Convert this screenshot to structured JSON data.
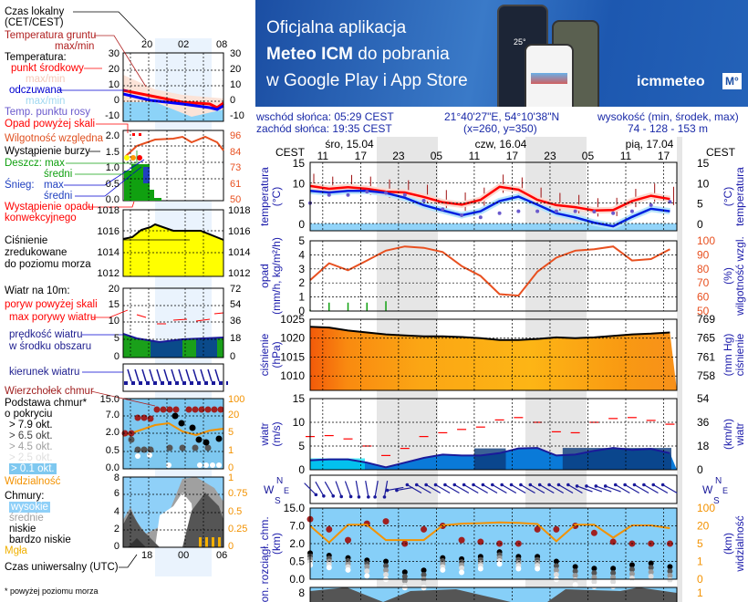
{
  "banner": {
    "line1": "Oficjalna aplikacja",
    "line2_bold": "Meteo ICM",
    "line2_rest": " do pobrania",
    "line3": "w Google Play i App Store",
    "brand": "icmmeteo",
    "brand_badge": "M°",
    "phone_temp": "25°"
  },
  "info": {
    "sunrise": "wschód słońca: 05:29 CEST",
    "sunset": "zachód słońca: 19:35 CEST",
    "coords": "21°40'27\"E, 54°10'38\"N",
    "grid": "(x=260,  y=350)",
    "elev_label": "wysokość (min, środek, max)",
    "elev_value": "74 - 128 - 153 m"
  },
  "time_header": {
    "tz_left": "CEST",
    "tz_right": "CEST",
    "days": [
      "śro, 15.04",
      "czw, 16.04",
      "pią, 17.04"
    ],
    "hours": [
      "11",
      "17",
      "23",
      "05",
      "11",
      "17",
      "23",
      "05",
      "11",
      "17"
    ]
  },
  "legend": {
    "local_time": "Czas lokalny",
    "local_time2": "(CET/CEST)",
    "ground_temp": "Temperatura gruntu",
    "ground_temp_mm": "max/min",
    "temperature": "Temperatura:",
    "mid_point": "punkt środkowy",
    "mid_mm": "max/min",
    "felt": "odczuwana",
    "felt_mm": "max/min",
    "dew_point": "Temp. punktu rosy",
    "precip_above": "Opad powyżej skali",
    "humidity": "Wilgotność względna",
    "storm": "Wystąpienie burzy",
    "rain_max": "Deszcz: max",
    "rain_avg": "średni",
    "snow": "Śnieg:",
    "snow_max": "max",
    "snow_avg": "średni",
    "convective1": "Wystąpienie opadu",
    "convective2": "konwekcyjnego",
    "pressure1": "Ciśnienie",
    "pressure2": "zredukowane",
    "pressure3": "do poziomu morza",
    "wind10": "Wiatr na 10m:",
    "gust_above": "poryw powyżej skali",
    "gust_max": "max porywy wiatru",
    "wind_speed1": "prędkość wiatru",
    "wind_speed2": "w środku obszaru",
    "wind_dir": "kierunek wiatru",
    "cloud_top": "Wierzchołek chmur",
    "cloud_base1": "Podstawa chmur*",
    "cloud_base2": "o pokryciu",
    "okt79": "> 7.9 okt.",
    "okt65": "> 6.5 okt.",
    "okt45": "> 4.5 okt.",
    "okt25": "> 2.5 okt.",
    "okt01": "> 0.1 okt.",
    "visibility": "Widzialność",
    "clouds": "Chmury:",
    "high": "wysokie",
    "mid": "średnie",
    "low": "niskie",
    "very_low": "bardzo niskie",
    "fog": "Mgła",
    "utc": "Czas uniwersalny (UTC)",
    "footnote": "* powyżej poziomu morza",
    "local_ticks": [
      "20",
      "02",
      "08"
    ],
    "utc_ticks": [
      "18",
      "00",
      "06"
    ],
    "temp_axis": [
      "30",
      "20",
      "10",
      "0",
      "-10"
    ],
    "precip_axis": [
      "2.0",
      "1.5",
      "1.0",
      "0.5",
      "0.0"
    ],
    "hum_axis": [
      "96",
      "84",
      "73",
      "61",
      "50"
    ],
    "press_axis": [
      "1018",
      "1016",
      "1014",
      "1012"
    ],
    "wind_axis": [
      "20",
      "15",
      "10",
      "5",
      "0"
    ],
    "wind_kmh_axis": [
      "72",
      "54",
      "36",
      "18",
      "0"
    ],
    "cloud_axis": [
      "15.0",
      "7.0",
      "2.0",
      "0.5",
      "0.0"
    ],
    "vis_axis": [
      "100",
      "20",
      "5",
      "1",
      "0"
    ],
    "cover_axis": [
      "8",
      "6",
      "4",
      "2",
      "0"
    ],
    "fog_axis": [
      "1",
      "0.75",
      "0.5",
      "0.25",
      "0"
    ]
  },
  "axis_titles": {
    "temp_l": [
      "temperatura",
      "(°C)"
    ],
    "temp_r": [
      "(°C)",
      "temperatura"
    ],
    "precip_l": [
      "opad",
      "(mm/h, kg/m²/h)"
    ],
    "hum_r": [
      "(%)",
      "wilgotność wzgl."
    ],
    "press_l": [
      "ciśnienie",
      "(hPa)"
    ],
    "press_r": [
      "(mm Hg)",
      "ciśnienie"
    ],
    "wind_l": [
      "wiatr",
      "(m/s)"
    ],
    "wind_r": [
      "(km/h)",
      "wiatr"
    ],
    "cloud_l": [
      "pion. rozciągł. chm.",
      "(km)"
    ],
    "vis_r": [
      "(km)",
      "widzialność"
    ],
    "dir_letters": [
      "N",
      "W",
      "E",
      "S"
    ]
  },
  "colors": {
    "temp": "#ff0000",
    "felt": "#0020e0",
    "dew": "#6a5acd",
    "hum": "#e85020",
    "rain": "#10a010",
    "gust": "#ff0000",
    "wind": "#1a1a9a",
    "vis": "#f39200",
    "night": "#e6e6e6",
    "sky": "#86cff8"
  },
  "chart_data": [
    {
      "type": "line",
      "title": "temperatura (°C)",
      "x_hours_from_wed_09": [
        0,
        3,
        6,
        9,
        12,
        15,
        18,
        21,
        24,
        27,
        30,
        33,
        36,
        39,
        42,
        45,
        48,
        51,
        54,
        57
      ],
      "ylim": [
        -1.8,
        15
      ],
      "yticks": [
        "15",
        "10",
        "5",
        "0"
      ],
      "yticks_values": [
        15,
        10,
        5,
        0
      ],
      "series": [
        {
          "name": "punkt środkowy",
          "values": [
            9.2,
            8.5,
            8.9,
            8.5,
            7.8,
            7.6,
            6.5,
            5.2,
            4.6,
            5.8,
            9.0,
            8.3,
            5.8,
            4.5,
            4.0,
            3.2,
            3.3,
            5.5,
            6.8,
            6.0
          ]
        },
        {
          "name": "odczuwana",
          "values": [
            8.0,
            7.6,
            8.0,
            8.0,
            7.5,
            6.3,
            4.5,
            3.2,
            2.0,
            3.0,
            5.5,
            6.6,
            4.6,
            2.5,
            1.5,
            0.2,
            -0.7,
            1.6,
            3.6,
            3.0
          ]
        },
        {
          "name": "punkt rosy",
          "values": [
            5.0,
            7.0,
            7.0,
            7.8,
            7.5,
            7.0,
            5.6,
            3.5,
            2.0,
            1.5,
            2.5,
            3.0,
            3.0,
            3.0,
            3.0,
            2.9,
            2.5,
            3.0,
            4.5,
            5.3
          ]
        }
      ]
    },
    {
      "type": "line",
      "title": "wilgotność wzgl. (%)",
      "ylim": [
        50,
        100
      ],
      "yticks": [
        "100",
        "90",
        "80",
        "70",
        "60",
        "50"
      ],
      "yticks_values": [
        100,
        90,
        80,
        70,
        60,
        50
      ],
      "precip_yticks": [
        "5",
        "4",
        "3",
        "2",
        "1",
        "0"
      ],
      "values": [
        72,
        84,
        79,
        86,
        93,
        96,
        95,
        92,
        82,
        75,
        62,
        61,
        78,
        88,
        93,
        94,
        96,
        86,
        87,
        94
      ],
      "precip_mm": [
        0.1,
        0.6,
        0.6,
        0.6,
        0.7,
        0,
        0,
        0,
        0,
        0,
        0,
        0,
        0,
        0,
        0,
        0,
        0,
        0,
        0,
        0
      ]
    },
    {
      "type": "area",
      "title": "ciśnienie (hPa)",
      "ylim": [
        1006.2,
        1025
      ],
      "yticks": [
        "1025",
        "1020",
        "1015",
        "1010"
      ],
      "yticks_values": [
        1025,
        1020,
        1015,
        1010
      ],
      "yticks_r": [
        "769",
        "765",
        "761",
        "758"
      ],
      "values": [
        1023,
        1022.8,
        1022,
        1021.5,
        1021,
        1020.7,
        1020.5,
        1020.5,
        1020.3,
        1020,
        1019.5,
        1019.5,
        1019.8,
        1020.2,
        1020,
        1020.2,
        1020.6,
        1021,
        1021.2,
        1021.5
      ]
    },
    {
      "type": "area",
      "title": "wiatr (m/s)",
      "ylim": [
        0,
        15
      ],
      "yticks": [
        "15",
        "10",
        "5",
        "0"
      ],
      "yticks_values": [
        15,
        10,
        5,
        0
      ],
      "yticks_r": [
        "54",
        "36",
        "18",
        "0"
      ],
      "speed": [
        2,
        2.2,
        2.2,
        1.5,
        0.5,
        1.5,
        2.5,
        3.2,
        3,
        3,
        3.5,
        4.5,
        4.6,
        3,
        3.2,
        4,
        4.6,
        4.2,
        4.4,
        3.5
      ],
      "gust": [
        7,
        7.2,
        6.5,
        5,
        3,
        4.5,
        7,
        7.8,
        8.5,
        9,
        10.5,
        11,
        10,
        8,
        7.8,
        10,
        10.8,
        11,
        10.4,
        9.6
      ],
      "direction_deg": [
        135,
        150,
        160,
        170,
        190,
        260,
        300,
        300,
        300,
        300,
        300,
        300,
        300,
        300,
        300,
        290,
        290,
        300,
        300,
        300
      ]
    },
    {
      "type": "scatter",
      "title": "pion. rozciągł. chm. (km) / widzialność (km)",
      "yticks": [
        "15.0",
        "7.0",
        "2.0",
        "0.5",
        "0.0"
      ],
      "yticks_r": [
        "100",
        "20",
        "5",
        "1",
        "0"
      ],
      "cloud_top_km": [
        10,
        6,
        3,
        8,
        9,
        2,
        6,
        7,
        3,
        2.5,
        2,
        2,
        6,
        6,
        7,
        5,
        2.5,
        2,
        2,
        2
      ],
      "cloud_base_km": [
        1.2,
        1,
        0.8,
        0.6,
        0.5,
        0.2,
        0.25,
        0.8,
        0.7,
        0.9,
        1.3,
        0.9,
        0.9,
        0.5,
        0.35,
        0.3,
        0.3,
        0.4,
        0.45,
        0.35
      ],
      "visibility_km": [
        20,
        6,
        25,
        25,
        8,
        8,
        8,
        22,
        30,
        32,
        35,
        33,
        28,
        7,
        25,
        25,
        10,
        22,
        22,
        18
      ]
    }
  ]
}
